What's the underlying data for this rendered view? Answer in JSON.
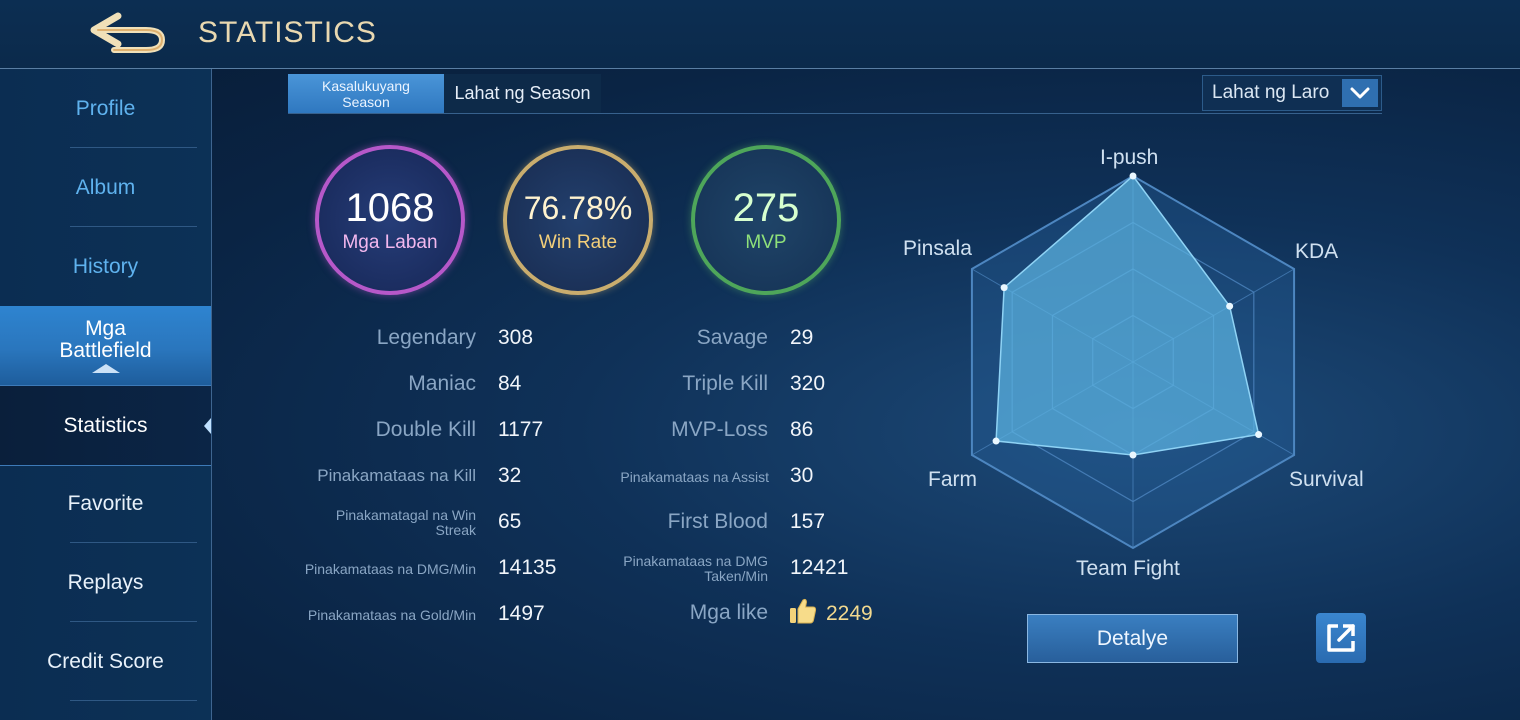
{
  "header": {
    "title": "STATISTICS",
    "back_icon": "back-arrow-icon"
  },
  "sidebar": {
    "items": [
      {
        "label": "Profile"
      },
      {
        "label": "Album"
      },
      {
        "label": "History"
      },
      {
        "label": "Mga Battlefield"
      },
      {
        "label": "Statistics"
      },
      {
        "label": "Favorite"
      },
      {
        "label": "Replays"
      },
      {
        "label": "Credit Score"
      }
    ],
    "active": "Statistics"
  },
  "season_tabs": {
    "current": "Kasalukuyang Season",
    "all": "Lahat ng Season",
    "selected": "Kasalukuyang Season"
  },
  "game_filter": {
    "value": "Lahat ng Laro"
  },
  "summary": {
    "matches": {
      "value": "1068",
      "label": "Mga Laban"
    },
    "win_rate": {
      "value": "76.78%",
      "label": "Win Rate"
    },
    "mvp": {
      "value": "275",
      "label": "MVP"
    }
  },
  "stats_left": [
    {
      "label": "Legendary",
      "value": "308"
    },
    {
      "label": "Maniac",
      "value": "84"
    },
    {
      "label": "Double Kill",
      "value": "1177"
    },
    {
      "label": "Pinakamataas na Kill",
      "value": "32"
    },
    {
      "label": "Pinakamatagal na Win Streak",
      "value": "65"
    },
    {
      "label": "Pinakamataas na DMG/Min",
      "value": "14135"
    },
    {
      "label": "Pinakamataas na Gold/Min",
      "value": "1497"
    }
  ],
  "stats_right": [
    {
      "label": "Savage",
      "value": "29"
    },
    {
      "label": "Triple Kill",
      "value": "320"
    },
    {
      "label": "MVP-Loss",
      "value": "86"
    },
    {
      "label": "Pinakamataas na Assist",
      "value": "30"
    },
    {
      "label": "First Blood",
      "value": "157"
    },
    {
      "label": "Pinakamataas na DMG Taken/Min",
      "value": "12421"
    },
    {
      "label": "Mga like",
      "value": "2249"
    }
  ],
  "radar": {
    "axes": [
      "I-push",
      "KDA",
      "Survival",
      "Team Fight",
      "Farm",
      "Pinsala"
    ],
    "levels": [
      1.0,
      0.6,
      0.78,
      0.5,
      0.85,
      0.8
    ],
    "fill": "#5bb3e0",
    "grid": "#4d86c0"
  },
  "buttons": {
    "detail": "Detalye",
    "share_icon": "share-external-icon"
  }
}
